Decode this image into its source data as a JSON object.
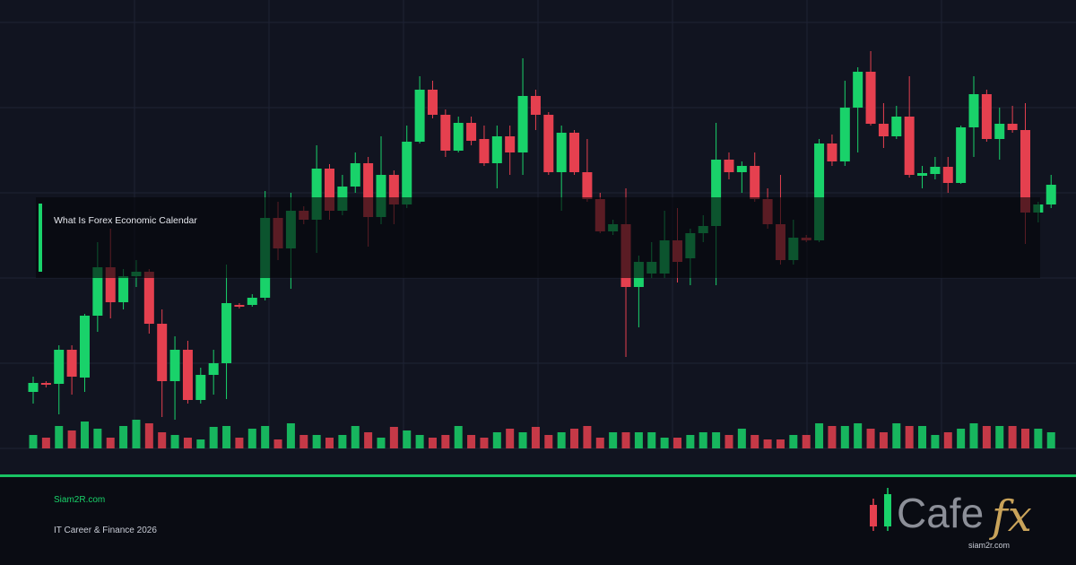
{
  "chart_data": {
    "type": "candlestick",
    "ylim": [
      0,
      475
    ],
    "yticks": [
      0,
      95,
      190,
      285,
      380,
      475
    ],
    "grid": true,
    "up_color": "#19d26a",
    "down_color": "#e5404f",
    "open": [
      63,
      73,
      72,
      110,
      79,
      148,
      202,
      163,
      192,
      197,
      139,
      75,
      110,
      54,
      82,
      95,
      160,
      160,
      168,
      257,
      223,
      265,
      255,
      312,
      265,
      292,
      318,
      258,
      305,
      272,
      342,
      400,
      372,
      332,
      363,
      345,
      318,
      348,
      330,
      393,
      372,
      308,
      352,
      308,
      278,
      242,
      250,
      180,
      195,
      195,
      232,
      212,
      240,
      248,
      322,
      308,
      315,
      278,
      250,
      210,
      235,
      232,
      340,
      320,
      380,
      420,
      362,
      348,
      370,
      304,
      306,
      314,
      296,
      358,
      395,
      345,
      362,
      355,
      263,
      272
    ],
    "close": [
      73,
      71,
      110,
      80,
      148,
      202,
      163,
      192,
      197,
      139,
      75,
      110,
      54,
      82,
      95,
      162,
      158,
      168,
      257,
      223,
      265,
      255,
      312,
      265,
      292,
      318,
      258,
      305,
      272,
      342,
      400,
      372,
      332,
      363,
      343,
      318,
      348,
      330,
      393,
      372,
      308,
      352,
      308,
      278,
      242,
      250,
      180,
      208,
      208,
      232,
      208,
      240,
      248,
      322,
      308,
      315,
      278,
      250,
      210,
      235,
      232,
      340,
      320,
      380,
      420,
      362,
      348,
      370,
      305,
      307,
      314,
      296,
      358,
      395,
      345,
      362,
      355,
      263,
      272,
      294
    ],
    "high": [
      80,
      75,
      115,
      115,
      150,
      230,
      245,
      200,
      210,
      200,
      155,
      125,
      120,
      90,
      110,
      205,
      162,
      172,
      287,
      275,
      285,
      270,
      338,
      317,
      305,
      330,
      325,
      348,
      310,
      360,
      415,
      410,
      378,
      370,
      370,
      360,
      360,
      360,
      435,
      400,
      375,
      360,
      355,
      345,
      285,
      255,
      290,
      215,
      230,
      265,
      268,
      245,
      260,
      363,
      330,
      320,
      330,
      290,
      305,
      255,
      238,
      345,
      350,
      410,
      425,
      443,
      385,
      382,
      415,
      315,
      325,
      325,
      360,
      415,
      400,
      380,
      382,
      385,
      275,
      305
    ],
    "low": [
      50,
      68,
      38,
      60,
      63,
      130,
      145,
      155,
      180,
      128,
      35,
      32,
      50,
      50,
      60,
      55,
      156,
      158,
      165,
      210,
      178,
      250,
      218,
      255,
      260,
      285,
      225,
      250,
      250,
      268,
      340,
      368,
      325,
      330,
      338,
      315,
      290,
      305,
      305,
      355,
      305,
      265,
      305,
      275,
      240,
      238,
      102,
      135,
      190,
      190,
      185,
      182,
      230,
      182,
      300,
      285,
      275,
      245,
      205,
      205,
      230,
      230,
      315,
      315,
      330,
      360,
      335,
      345,
      302,
      290,
      300,
      285,
      295,
      325,
      342,
      322,
      352,
      228,
      252,
      268
    ],
    "volume": [
      15,
      12,
      25,
      20,
      30,
      22,
      12,
      25,
      32,
      28,
      18,
      15,
      12,
      10,
      24,
      25,
      12,
      22,
      25,
      10,
      28,
      15,
      15,
      12,
      15,
      25,
      18,
      12,
      24,
      20,
      15,
      12,
      15,
      25,
      15,
      12,
      18,
      22,
      18,
      24,
      15,
      18,
      22,
      25,
      12,
      18,
      18,
      18,
      18,
      12,
      12,
      15,
      18,
      18,
      15,
      22,
      15,
      10,
      10,
      15,
      15,
      28,
      25,
      25,
      28,
      22,
      18,
      28,
      25,
      25,
      15,
      18,
      22,
      28,
      25,
      25,
      25,
      22,
      22,
      18
    ],
    "volume_lim": [
      0,
      35
    ]
  },
  "overlay": {
    "title": "What Is Forex Economic Calendar"
  },
  "footer": {
    "site": "Siam2R.com",
    "tagline": "IT Career & Finance 2026"
  },
  "logo": {
    "word": "Cafe",
    "accent": "fx",
    "url": "siam2r.com"
  }
}
